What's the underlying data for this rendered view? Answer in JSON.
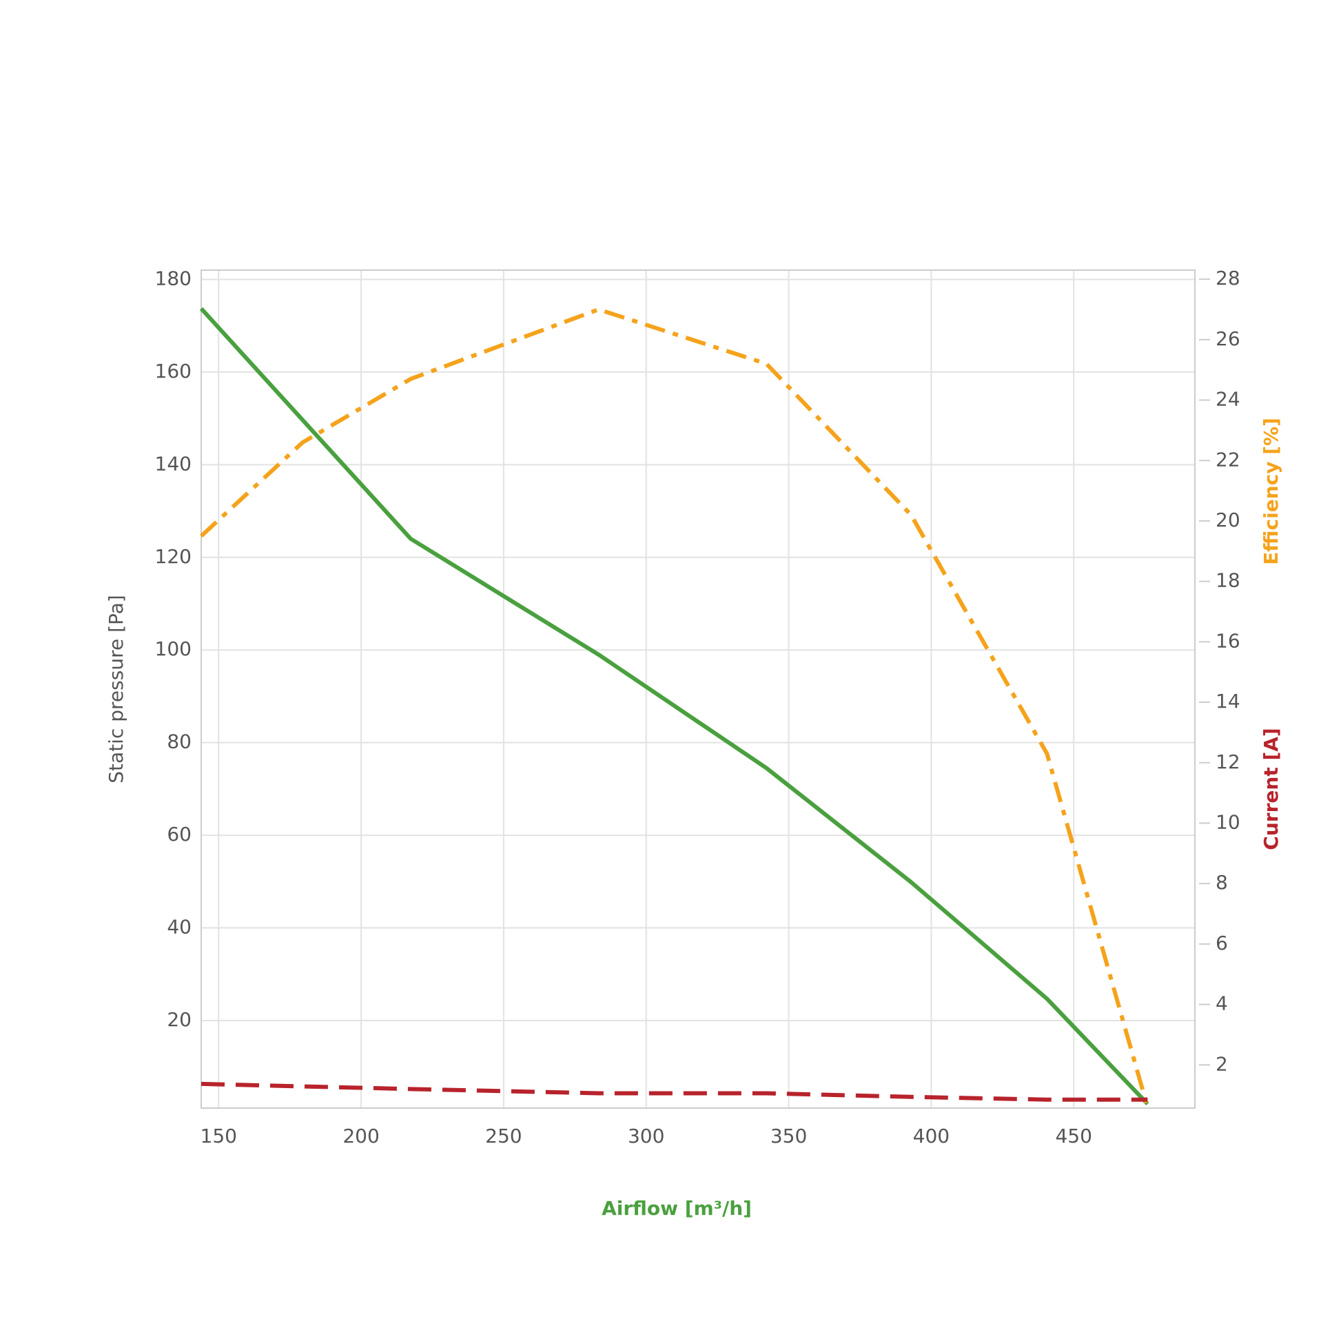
{
  "chart_data": {
    "type": "line",
    "x_label": "Airflow [m³/h]",
    "y_label": "Static pressure [Pa]",
    "y2_labels": [
      "Efficiency [%]",
      "Current [A]"
    ],
    "xlim": [
      143.9,
      492.5
    ],
    "xticks": [
      150,
      200,
      250,
      300,
      350,
      400,
      450
    ],
    "ylim": [
      1.1,
      182
    ],
    "yticks": [
      20,
      40,
      60,
      80,
      100,
      120,
      140,
      160,
      180
    ],
    "y2lim": [
      0.57,
      28.3
    ],
    "y2ticks": [
      2,
      4,
      6,
      8,
      10,
      12,
      14,
      16,
      18,
      20,
      22,
      24,
      26,
      28
    ],
    "grid": true,
    "series": [
      {
        "name": "Static pressure",
        "color": "#4aa03f",
        "dash": "solid",
        "x": [
          143.9,
          217.4,
          283.3,
          342.2,
          392.9,
          440.6,
          475.9
        ],
        "values": [
          173.7,
          124,
          99,
          74.5,
          49.9,
          24.7,
          2
        ]
      },
      {
        "name": "Efficiency",
        "color": "#f5a31c",
        "dash": "dashdot",
        "axis": "y2",
        "x": [
          143.9,
          179.5,
          217.4,
          283.3,
          342.2,
          392.9,
          440.6,
          475.9
        ],
        "values": [
          19.5,
          22.6,
          24.7,
          27.0,
          25.2,
          20.2,
          12.3,
          0.6
        ]
      },
      {
        "name": "Current",
        "color": "#b8232c",
        "dash": "dashed",
        "axis": "y2",
        "x": [
          143.9,
          217.4,
          283.3,
          342.2,
          392.9,
          440.6,
          475.9
        ],
        "values": [
          1.37,
          1.2,
          1.06,
          1.06,
          0.94,
          0.85,
          0.85
        ]
      }
    ]
  }
}
